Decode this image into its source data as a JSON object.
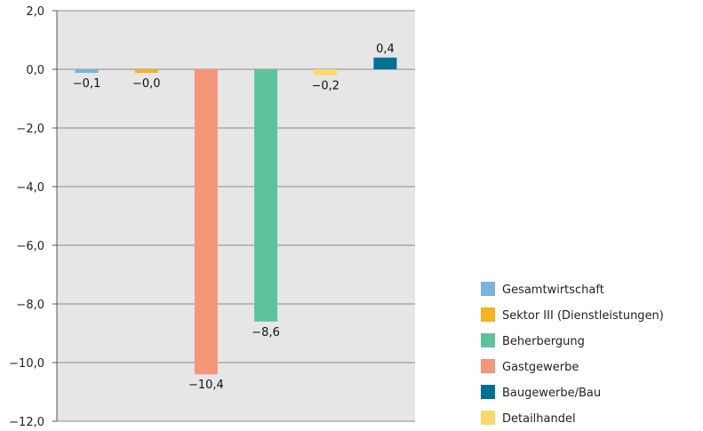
{
  "chart_data": {
    "type": "bar",
    "title": "",
    "xlabel": "",
    "ylabel": "",
    "ylim": [
      -12,
      2
    ],
    "ticks": [
      {
        "value": 2,
        "label": "2,0"
      },
      {
        "value": 0,
        "label": "0,0"
      },
      {
        "value": -2,
        "label": "−2,0"
      },
      {
        "value": -4,
        "label": "−4,0"
      },
      {
        "value": -6,
        "label": "−6,0"
      },
      {
        "value": -8,
        "label": "−8,0"
      },
      {
        "value": -10,
        "label": "−10,0"
      },
      {
        "value": -12,
        "label": "−12,0"
      }
    ],
    "grid": true,
    "legend_position": "right",
    "series": [
      {
        "name": "Gesamtwirtschaft",
        "value": -0.1,
        "label": "−0,1",
        "color": "#7ab4dc"
      },
      {
        "name": "Sektor III (Dienstleistungen)",
        "value": -0.02,
        "label": "−0,0",
        "color": "#f7b21c"
      },
      {
        "name": "Gastgewerbe",
        "value": -10.4,
        "label": "−10,4",
        "color": "#f59679"
      },
      {
        "name": "Beherbergung",
        "value": -8.6,
        "label": "−8,6",
        "color": "#5dc39a"
      },
      {
        "name": "Detailhandel",
        "value": -0.2,
        "label": "−0,2",
        "color": "#fcd96a"
      },
      {
        "name": "Baugewerbe/Bau",
        "value": 0.4,
        "label": "0,4",
        "color": "#00718f"
      }
    ],
    "legend_order": [
      "Gesamtwirtschaft",
      "Sektor III (Dienstleistungen)",
      "Beherbergung",
      "Gastgewerbe",
      "Baugewerbe/Bau",
      "Detailhandel"
    ]
  }
}
